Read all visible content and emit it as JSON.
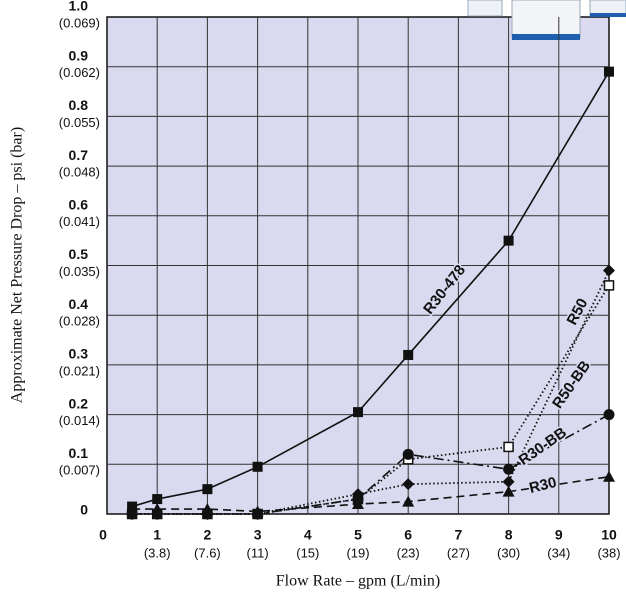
{
  "chart_data": {
    "type": "line",
    "y_label": "Approximate Net Pressure Drop – psi (bar)",
    "x_label": "Flow Rate – gpm (L/min)",
    "x": [
      0.5,
      1,
      2,
      3,
      5,
      6,
      8,
      10
    ],
    "xlim": [
      0,
      10
    ],
    "xticks": [
      0,
      1,
      2,
      3,
      4,
      5,
      6,
      7,
      8,
      9,
      10
    ],
    "xtick_secondary_labels": [
      null,
      "(3.8)",
      "(7.6)",
      "(11)",
      "(15)",
      "(19)",
      "(23)",
      "(27)",
      "(30)",
      "(34)",
      "(38)"
    ],
    "ylim": [
      0,
      1
    ],
    "yticks": [
      0,
      0.1,
      0.2,
      0.3,
      0.4,
      0.5,
      0.6,
      0.7,
      0.8,
      0.9,
      {
        "value": 1,
        "label": "1.0"
      }
    ],
    "ytick_secondary_labels": [
      null,
      "(0.007)",
      "(0.014)",
      "(0.021)",
      "(0.028)",
      "(0.035)",
      "(0.041)",
      "(0.048)",
      "(0.055)",
      "(0.062)",
      "(0.069)"
    ],
    "grid": true,
    "series": [
      {
        "name": "R30-478",
        "color": "#111111",
        "marker": "square",
        "dash": "solid",
        "values": [
          0.015,
          0.03,
          0.05,
          0.095,
          0.205,
          0.32,
          0.55,
          0.89
        ]
      },
      {
        "name": "R50",
        "color": "#111111",
        "marker": "diamond",
        "dash": "dotted",
        "values": [
          0,
          0,
          0,
          0,
          0.04,
          0.06,
          0.065,
          0.49
        ]
      },
      {
        "name": "R50-BB",
        "color": "#111111",
        "marker": "open-square",
        "dash": "dotted",
        "values": [
          0,
          0,
          0,
          0,
          0.03,
          0.11,
          0.135,
          0.46
        ]
      },
      {
        "name": "R30-BB",
        "color": "#111111",
        "marker": "circle",
        "dash": "dashdot",
        "values": [
          0,
          0,
          0,
          0,
          0.03,
          0.12,
          0.09,
          0.2
        ]
      },
      {
        "name": "R30",
        "color": "#111111",
        "marker": "triangle",
        "dash": "dashed",
        "values": [
          0.01,
          0.01,
          0.01,
          0.005,
          0.02,
          0.025,
          0.045,
          0.075
        ]
      }
    ]
  }
}
